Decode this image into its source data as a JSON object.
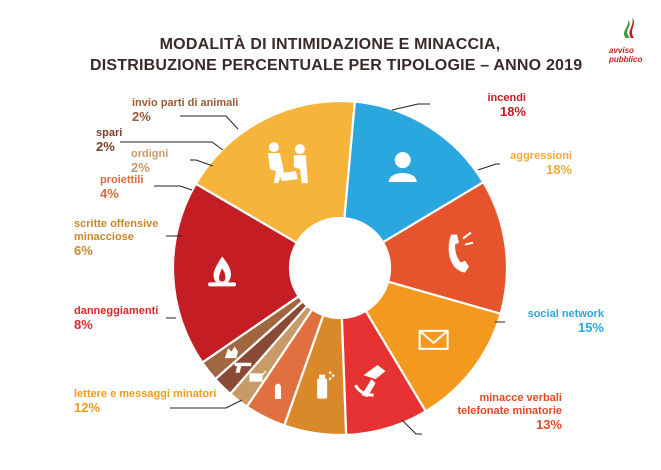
{
  "chart_data": {
    "type": "pie",
    "style": "donut",
    "title_lines": [
      "MODALITÀ DI INTIMIDAZIONE E MINACCIA,",
      "DISTRIBUZIONE PERCENTUALE PER TIPOLOGIE – ANNO 2019"
    ],
    "slices": [
      {
        "name": "incendi",
        "label_lines": [
          "incendi"
        ],
        "value": 18,
        "pct_text": "18%",
        "color": "#c41d24",
        "label_color": "#c41d24",
        "icon": "fire-icon"
      },
      {
        "name": "aggressioni",
        "label_lines": [
          "aggressioni"
        ],
        "value": 18,
        "pct_text": "18%",
        "color": "#f6b43b",
        "label_color": "#f2a93b",
        "icon": "aggression-icon"
      },
      {
        "name": "social network",
        "label_lines": [
          "social network"
        ],
        "value": 15,
        "pct_text": "15%",
        "color": "#2aa7df",
        "label_color": "#2aa7df",
        "icon": "person-icon"
      },
      {
        "name": "minacce verbali telefonate minatorie",
        "label_lines": [
          "minacce verbali",
          "telefonate minatorie"
        ],
        "value": 13,
        "pct_text": "13%",
        "color": "#e5542c",
        "label_color": "#e04a24",
        "icon": "phone-icon"
      },
      {
        "name": "lettere e messaggi minatori",
        "label_lines": [
          "lettere e messaggi minatori"
        ],
        "value": 12,
        "pct_text": "12%",
        "color": "#f39a1e",
        "label_color": "#f39a1e",
        "icon": "envelope-icon"
      },
      {
        "name": "danneggiamenti",
        "label_lines": [
          "danneggiamenti"
        ],
        "value": 8,
        "pct_text": "8%",
        "color": "#e63232",
        "label_color": "#d92a2a",
        "icon": "hammer-icon"
      },
      {
        "name": "scritte offensive minacciose",
        "label_lines": [
          "scritte offensive",
          "minacciose"
        ],
        "value": 6,
        "pct_text": "6%",
        "color": "#d9892a",
        "label_color": "#c9882c",
        "icon": "spray-icon"
      },
      {
        "name": "proiettili",
        "label_lines": [
          "proiettili"
        ],
        "value": 4,
        "pct_text": "4%",
        "color": "#e07040",
        "label_color": "#e06a3a",
        "icon": "bullet-icon"
      },
      {
        "name": "ordigni",
        "label_lines": [
          "ordigni"
        ],
        "value": 2,
        "pct_text": "2%",
        "color": "#c89a68",
        "label_color": "#c89a68",
        "icon": "bomb-icon"
      },
      {
        "name": "spari",
        "label_lines": [
          "spari"
        ],
        "value": 2,
        "pct_text": "2%",
        "color": "#8a4a35",
        "label_color": "#7a3f2e",
        "icon": "gun-icon"
      },
      {
        "name": "invio parti di animali",
        "label_lines": [
          "invio parti di animali"
        ],
        "value": 2,
        "pct_text": "2%",
        "color": "#a06640",
        "label_color": "#9a5a33",
        "icon": "animal-icon"
      }
    ]
  },
  "logo": {
    "lines": [
      "avviso",
      "pubblico"
    ],
    "color": "#c41d1d"
  }
}
